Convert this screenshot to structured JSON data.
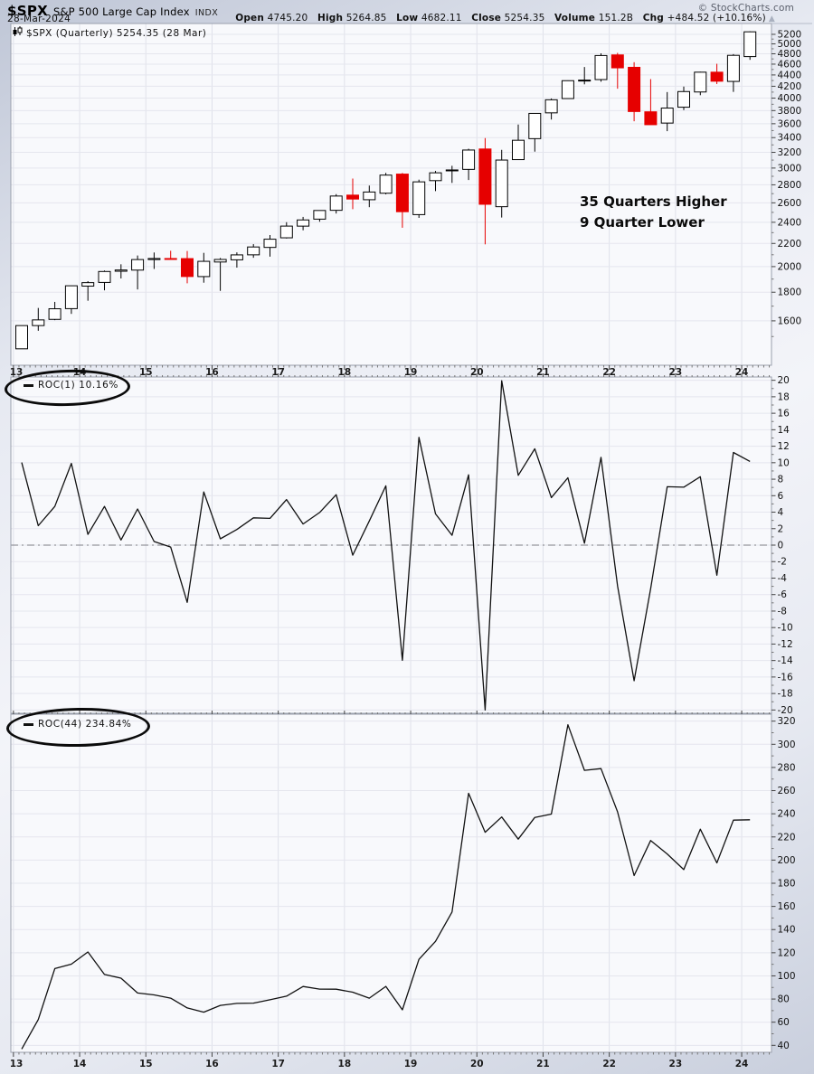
{
  "header": {
    "symbol": "$SPX",
    "name": "S&P 500 Large Cap Index",
    "exchange": "INDX",
    "date": "28-Mar-2024",
    "copyright": "© StockCharts.com",
    "quote": {
      "open_label": "Open",
      "open": "4745.20",
      "high_label": "High",
      "high": "5264.85",
      "low_label": "Low",
      "low": "4682.11",
      "close_label": "Close",
      "close": "5254.35",
      "volume_label": "Volume",
      "volume": "151.2B",
      "chg_label": "Chg",
      "chg": "+484.52 (+10.16%)",
      "chg_arrow": "▲"
    }
  },
  "price_panel": {
    "series_label": "$SPX (Quarterly) 5254.35 (28 Mar)",
    "annotation_line1": "35 Quarters Higher",
    "annotation_line2": "9 Quarter Lower"
  },
  "roc1_panel": {
    "label": "ROC(1) 10.16%"
  },
  "roc44_panel": {
    "label": "ROC(44) 234.84%"
  },
  "chart_data": [
    {
      "type": "candlestick",
      "title": "$SPX (Quarterly) 5254.35 (28 Mar)",
      "y_scale": "log",
      "ylim": [
        1333,
        5437
      ],
      "y_axis": {
        "min": 1600,
        "max": 5200,
        "step": 200,
        "minor_start": 1500,
        "minor_step": 200
      },
      "x_tick_labels": [
        "13",
        "14",
        "15",
        "16",
        "17",
        "18",
        "19",
        "20",
        "21",
        "22",
        "23",
        "24"
      ],
      "up_color": "#ffffff",
      "down_color": "#e60000",
      "outline_color": "#000000",
      "quarters": [
        "2013 Q1",
        "2013 Q2",
        "2013 Q3",
        "2013 Q4",
        "2014 Q1",
        "2014 Q2",
        "2014 Q3",
        "2014 Q4",
        "2015 Q1",
        "2015 Q2",
        "2015 Q3",
        "2015 Q4",
        "2016 Q1",
        "2016 Q2",
        "2016 Q3",
        "2016 Q4",
        "2017 Q1",
        "2017 Q2",
        "2017 Q3",
        "2017 Q4",
        "2018 Q1",
        "2018 Q2",
        "2018 Q3",
        "2018 Q4",
        "2019 Q1",
        "2019 Q2",
        "2019 Q3",
        "2019 Q4",
        "2020 Q1",
        "2020 Q2",
        "2020 Q3",
        "2020 Q4",
        "2021 Q1",
        "2021 Q2",
        "2021 Q3",
        "2021 Q4",
        "2022 Q1",
        "2022 Q2",
        "2022 Q3",
        "2022 Q4",
        "2023 Q1",
        "2023 Q2",
        "2023 Q3",
        "2023 Q4",
        "2024 Q1"
      ],
      "open": [
        1426.19,
        1569.18,
        1609.78,
        1682.41,
        1845.86,
        1873.96,
        1962.29,
        1971.44,
        2058.9,
        2067.63,
        2067.0,
        1919.65,
        2038.2,
        2056.62,
        2099.34,
        2164.33,
        2251.57,
        2362.34,
        2431.39,
        2521.2,
        2683.73,
        2633.45,
        2704.95,
        2926.29,
        2476.96,
        2848.63,
        2971.41,
        2983.69,
        3244.67,
        2558.98,
        3105.92,
        3385.87,
        3764.61,
        3992.78,
        4300.73,
        4317.16,
        4778.14,
        4540.32,
        3781.0,
        3609.78,
        3853.29,
        4102.2,
        4450.45,
        4284.52,
        4745.2
      ],
      "high": [
        1570.28,
        1687.18,
        1729.86,
        1849.44,
        1883.97,
        1968.17,
        2019.26,
        2093.55,
        2119.59,
        2134.72,
        2132.82,
        2116.48,
        2072.21,
        2120.55,
        2193.81,
        2277.53,
        2400.98,
        2453.82,
        2519.44,
        2694.97,
        2872.87,
        2791.47,
        2940.91,
        2939.86,
        2860.31,
        2964.15,
        3027.98,
        3247.93,
        3393.52,
        3233.13,
        3588.11,
        3760.2,
        3994.41,
        4302.43,
        4545.85,
        4808.93,
        4818.62,
        4637.3,
        4325.28,
        4100.96,
        4195.44,
        4458.48,
        4607.07,
        4793.3,
        5264.85
      ],
      "low": [
        1426.19,
        1536.03,
        1604.57,
        1646.47,
        1737.92,
        1814.36,
        1904.78,
        1820.66,
        1980.9,
        2056.32,
        1867.01,
        1871.91,
        1810.1,
        1991.68,
        2074.02,
        2083.79,
        2245.13,
        2322.25,
        2405.7,
        2488.03,
        2532.69,
        2553.8,
        2691.99,
        2346.58,
        2443.96,
        2728.81,
        2822.12,
        2855.94,
        2191.86,
        2447.49,
        3101.17,
        3209.45,
        3662.71,
        3992.78,
        4233.13,
        4278.94,
        4157.87,
        3636.87,
        3584.13,
        3491.58,
        3808.86,
        4048.28,
        4238.63,
        4103.78,
        4682.11
      ],
      "close": [
        1569.19,
        1606.28,
        1681.55,
        1848.36,
        1872.34,
        1960.23,
        1972.29,
        2058.9,
        2067.89,
        2063.11,
        1920.03,
        2043.94,
        2059.74,
        2098.86,
        2168.27,
        2238.83,
        2362.72,
        2423.41,
        2519.36,
        2673.61,
        2640.87,
        2718.37,
        2913.98,
        2506.85,
        2834.4,
        2941.76,
        2976.74,
        3230.78,
        2584.59,
        3100.29,
        3363.0,
        3756.07,
        3972.89,
        4297.5,
        4307.54,
        4766.18,
        4530.41,
        3785.38,
        3585.62,
        3839.5,
        4109.31,
        4450.38,
        4288.05,
        4769.83,
        5254.35
      ]
    },
    {
      "type": "line",
      "name": "ROC(1)",
      "current": "10.16%",
      "ylim": [
        -20.4,
        20.4
      ],
      "y_axis": {
        "min": -20,
        "max": 20,
        "step": 2,
        "minor_start": -19,
        "minor_step": 2
      },
      "zero_line": true,
      "line_color": "#111111",
      "values": [
        10.03,
        2.36,
        4.69,
        9.92,
        1.3,
        4.69,
        0.62,
        4.39,
        0.44,
        -0.23,
        -6.94,
        6.45,
        0.77,
        1.9,
        3.31,
        3.25,
        5.53,
        2.57,
        3.96,
        6.12,
        -1.22,
        2.93,
        7.2,
        -13.97,
        13.07,
        3.79,
        1.19,
        8.53,
        -20.0,
        19.95,
        8.47,
        11.69,
        5.77,
        8.17,
        0.23,
        10.65,
        -4.95,
        -16.45,
        -5.28,
        7.08,
        7.03,
        8.3,
        -3.65,
        11.24,
        10.16
      ]
    },
    {
      "type": "line",
      "name": "ROC(44)",
      "current": "234.84%",
      "ylim": [
        34,
        326
      ],
      "y_axis": {
        "min": 40,
        "max": 320,
        "step": 20,
        "minor_start": 50,
        "minor_step": 20
      },
      "zero_line": false,
      "line_color": "#111111",
      "values": [
        36.8,
        62.3,
        106.3,
        110.1,
        120.7,
        101.2,
        98.0,
        85.2,
        83.6,
        80.8,
        72.3,
        68.7,
        74.5,
        76.2,
        76.5,
        79.4,
        82.5,
        90.8,
        88.6,
        88.5,
        85.9,
        80.8,
        90.9,
        70.7,
        114.3,
        129.8,
        155.2,
        257.7,
        224.0,
        237.2,
        218.1,
        236.8,
        239.7,
        316.9,
        277.5,
        279.0,
        241.7,
        186.6,
        216.9,
        205.3,
        191.8,
        226.7,
        197.6,
        234.5,
        234.84
      ]
    }
  ]
}
